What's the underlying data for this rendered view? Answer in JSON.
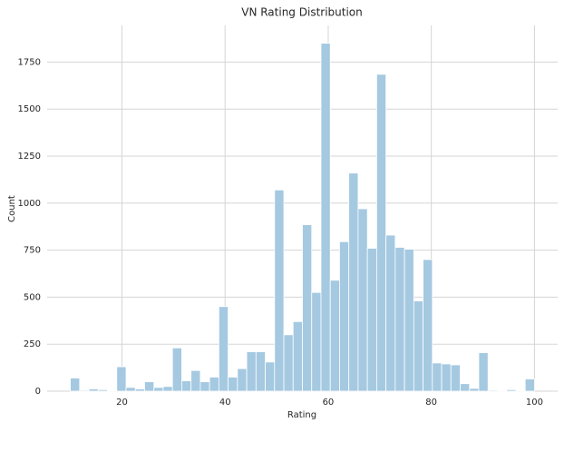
{
  "chart_data": {
    "type": "histogram",
    "title": "VN Rating Distribution",
    "x_label": "Rating",
    "y_label": "Count",
    "bins": [
      10,
      11.8,
      13.6,
      15.4,
      17.2,
      19,
      20.8,
      22.6,
      24.4,
      26.2,
      28,
      29.8,
      31.6,
      33.4,
      35.2,
      37,
      38.8,
      40.6,
      42.4,
      44.2,
      46,
      47.8,
      49.6,
      51.4,
      53.2,
      55,
      56.8,
      58.6,
      60.4,
      62.2,
      64,
      65.8,
      67.6,
      69.4,
      71.2,
      73,
      74.8,
      76.6,
      78.4,
      80.2,
      82,
      83.8,
      85.6,
      87.4,
      89.2,
      91,
      92.8,
      94.6,
      96.4,
      98.2,
      100
    ],
    "values": [
      70,
      5,
      12,
      8,
      3,
      130,
      20,
      12,
      50,
      20,
      25,
      230,
      55,
      110,
      50,
      75,
      450,
      75,
      120,
      210,
      210,
      155,
      1070,
      300,
      370,
      885,
      525,
      1850,
      590,
      795,
      1160,
      970,
      760,
      1685,
      830,
      765,
      755,
      480,
      700,
      150,
      145,
      140,
      40,
      15,
      205,
      5,
      2,
      8,
      2,
      65
    ],
    "color": "#a5c9e1",
    "xlim": [
      5.5,
      104.5
    ],
    "ylim": [
      0,
      1945
    ],
    "xticks": [
      20,
      40,
      60,
      80,
      100
    ],
    "yticks": [
      0,
      250,
      500,
      750,
      1000,
      1250,
      1500,
      1750
    ],
    "grid": true
  }
}
